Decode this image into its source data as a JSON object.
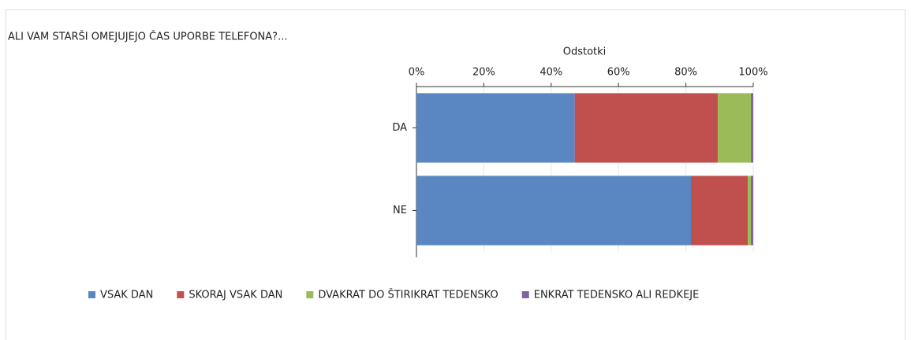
{
  "chart_data": {
    "type": "stacked-bar-horizontal",
    "title": "ALI VAM STARŠI OMEJUJEJO ČAS UPORBE TELEFONA?...",
    "x_axis_label": "Odstotki",
    "categories": [
      "DA",
      "NE"
    ],
    "series": [
      {
        "name": "VSAK DAN",
        "color": "#5a87c1",
        "values": [
          47,
          81.5
        ]
      },
      {
        "name": "SKORAJ VSAK DAN",
        "color": "#c0504d",
        "values": [
          42.5,
          16.9
        ]
      },
      {
        "name": "DVAKRAT DO ŠTIRIKRAT TEDENSKO",
        "color": "#9bbb59",
        "values": [
          9.8,
          0.9
        ]
      },
      {
        "name": "ENKRAT TEDENSKO ALI REDKEJE",
        "color": "#8064a2",
        "values": [
          0.7,
          0.7
        ]
      }
    ],
    "xlim": [
      0,
      100
    ],
    "xticks": [
      {
        "value": 0,
        "label": "0%"
      },
      {
        "value": 20,
        "label": "20%"
      },
      {
        "value": 40,
        "label": "40%"
      },
      {
        "value": 60,
        "label": "60%"
      },
      {
        "value": 80,
        "label": "80%"
      },
      {
        "value": 100,
        "label": "100%"
      }
    ],
    "grid": true,
    "legend": "bottom"
  }
}
